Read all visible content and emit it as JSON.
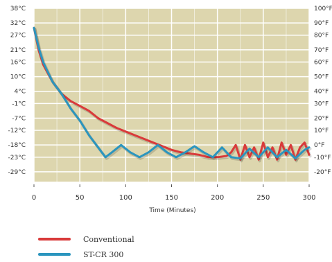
{
  "chart_data": {
    "type": "line",
    "xlabel": "Time (Minutes)",
    "x_ticks": [
      0,
      50,
      100,
      150,
      200,
      250,
      300
    ],
    "xlim": [
      0,
      300
    ],
    "ylim_c": [
      -33,
      38
    ],
    "y_ticks_left": [
      {
        "value": 38,
        "label": "38°C"
      },
      {
        "value": 32,
        "label": "32°C"
      },
      {
        "value": 27,
        "label": "27°C"
      },
      {
        "value": 21,
        "label": "21°C"
      },
      {
        "value": 16,
        "label": "16°C"
      },
      {
        "value": 10,
        "label": "10°C"
      },
      {
        "value": 4,
        "label": "4°C"
      },
      {
        "value": -1,
        "label": "-1°C"
      },
      {
        "value": -7,
        "label": "-7°C"
      },
      {
        "value": -12,
        "label": "-12°C"
      },
      {
        "value": -18,
        "label": "-18°C"
      },
      {
        "value": -23,
        "label": "-23°C"
      },
      {
        "value": -29,
        "label": "-29°C"
      }
    ],
    "y_ticks_right": [
      {
        "value": 38,
        "label": "100°F"
      },
      {
        "value": 32,
        "label": "90°F"
      },
      {
        "value": 27,
        "label": "80°F"
      },
      {
        "value": 21,
        "label": "70°F"
      },
      {
        "value": 16,
        "label": "60°F"
      },
      {
        "value": 10,
        "label": "50°F"
      },
      {
        "value": 4,
        "label": "40°F"
      },
      {
        "value": -1,
        "label": "30°F"
      },
      {
        "value": -7,
        "label": "20°F"
      },
      {
        "value": -12,
        "label": "10°F"
      },
      {
        "value": -18,
        "label": "0°F"
      },
      {
        "value": -23,
        "label": "-10°F"
      },
      {
        "value": -29,
        "label": "-20°F"
      }
    ],
    "grid": true,
    "background_color": "#ddd6ae",
    "grid_color": "#ffffff",
    "series": [
      {
        "name": "Conventional",
        "color": "#d93a3a",
        "x": [
          0,
          5,
          10,
          20,
          30,
          40,
          50,
          60,
          70,
          80,
          90,
          100,
          110,
          120,
          130,
          140,
          150,
          160,
          170,
          180,
          190,
          200,
          210,
          215,
          220,
          225,
          230,
          235,
          240,
          245,
          250,
          255,
          260,
          265,
          270,
          275,
          280,
          285,
          290,
          295,
          300
        ],
        "y": [
          30,
          21,
          15,
          8,
          3,
          0,
          -2,
          -4,
          -7,
          -9,
          -11,
          -12.5,
          -14,
          -15.5,
          -17,
          -18.5,
          -20,
          -21,
          -21.5,
          -22,
          -23,
          -23,
          -22.5,
          -21,
          -18,
          -24,
          -18,
          -23,
          -19,
          -24,
          -17,
          -23,
          -19,
          -24,
          -17,
          -22,
          -18,
          -24,
          -19,
          -17,
          -22
        ]
      },
      {
        "name": "ST-CR 300",
        "color": "#2b95be",
        "x": [
          0,
          5,
          10,
          20,
          30,
          40,
          50,
          60,
          70,
          78,
          85,
          95,
          105,
          115,
          125,
          135,
          145,
          155,
          165,
          175,
          185,
          195,
          205,
          215,
          225,
          235,
          245,
          255,
          265,
          275,
          285,
          295,
          300
        ],
        "y": [
          30,
          22,
          16,
          8,
          3,
          -3,
          -8,
          -14,
          -19,
          -23,
          -21,
          -18,
          -21,
          -23,
          -21,
          -18,
          -21,
          -23,
          -21,
          -18.5,
          -21,
          -23,
          -19,
          -23,
          -23.5,
          -19.5,
          -23,
          -19,
          -23,
          -20,
          -23.5,
          -20,
          -19
        ]
      }
    ]
  }
}
